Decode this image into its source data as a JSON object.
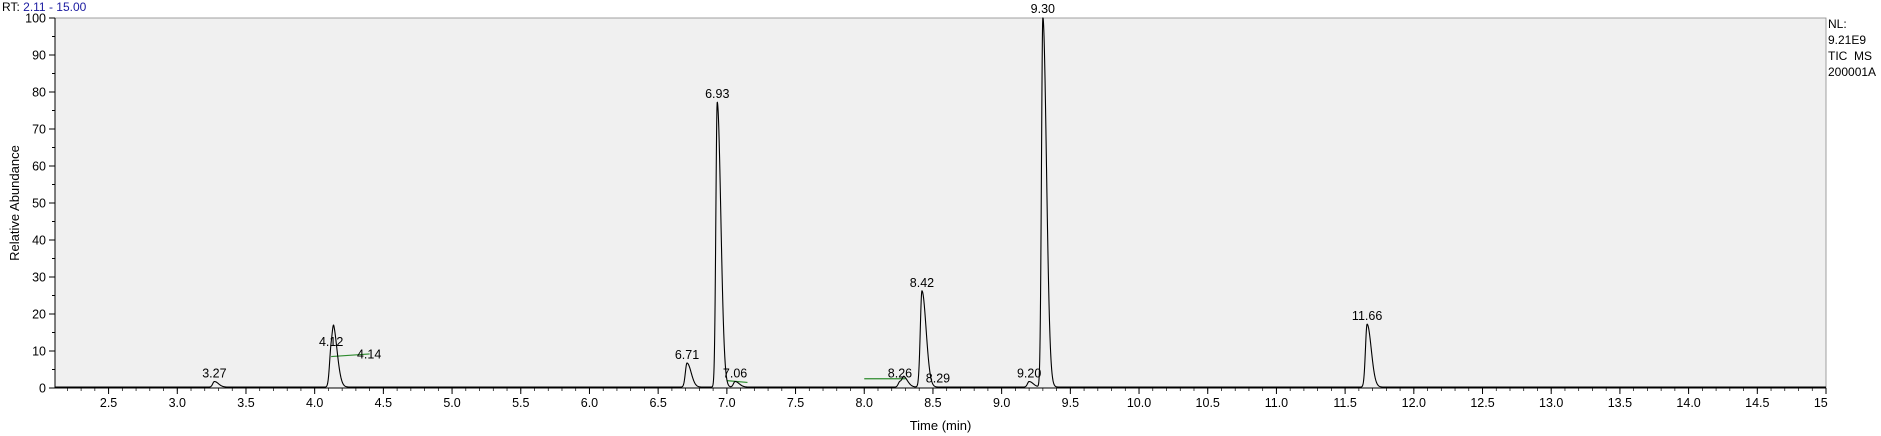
{
  "header": {
    "rt_prefix": "RT:",
    "rt_range": "2.11 - 15.00"
  },
  "info": {
    "nl_label": "NL:",
    "nl_value": "9.21E9",
    "trace": "TIC  MS",
    "file": "200001A"
  },
  "colors": {
    "plot_background": "#f0f0f0",
    "trace": "#000000",
    "baseline_marker": "#2e8b2e",
    "rt_range_text": "#1a1aa0"
  },
  "chart_data": {
    "type": "line",
    "title": "",
    "xlabel": "Time (min)",
    "ylabel": "Relative Abundance",
    "xlim": [
      2.11,
      15.0
    ],
    "ylim": [
      0,
      100
    ],
    "x_ticks": [
      2.5,
      3.0,
      3.5,
      4.0,
      4.5,
      5.0,
      5.5,
      6.0,
      6.5,
      7.0,
      7.5,
      8.0,
      8.5,
      9.0,
      9.5,
      10.0,
      10.5,
      11.0,
      11.5,
      12.0,
      12.5,
      13.0,
      13.5,
      14.0,
      14.5,
      15.0
    ],
    "x_tick_labels": [
      "2.5",
      "3.0",
      "3.5",
      "4.0",
      "4.5",
      "5.0",
      "5.5",
      "6.0",
      "6.5",
      "7.0",
      "7.5",
      "8.0",
      "8.5",
      "9.0",
      "9.5",
      "10.0",
      "10.5",
      "11.0",
      "11.5",
      "12.0",
      "12.5",
      "13.0",
      "13.5",
      "14.0",
      "14.5",
      "15.0"
    ],
    "y_ticks": [
      0,
      10,
      20,
      30,
      40,
      50,
      60,
      70,
      80,
      90,
      100
    ],
    "y_tick_labels": [
      "0",
      "10",
      "20",
      "30",
      "40",
      "50",
      "60",
      "70",
      "80",
      "90",
      "100"
    ],
    "peaks": [
      {
        "rt": 3.27,
        "label": "3.27",
        "height": 1.5
      },
      {
        "rt": 4.12,
        "label": "4.12",
        "height": 10
      },
      {
        "rt": 4.14,
        "label": "4.14",
        "height": 8.5
      },
      {
        "rt": 6.71,
        "label": "6.71",
        "height": 6.5
      },
      {
        "rt": 6.93,
        "label": "6.93",
        "height": 77
      },
      {
        "rt": 7.06,
        "label": "7.06",
        "height": 1.5
      },
      {
        "rt": 8.26,
        "label": "8.26",
        "height": 1.5
      },
      {
        "rt": 8.29,
        "label": "8.29",
        "height": 2
      },
      {
        "rt": 8.42,
        "label": "8.42",
        "height": 26
      },
      {
        "rt": 9.2,
        "label": "9.20",
        "height": 1.5
      },
      {
        "rt": 9.3,
        "label": "9.30",
        "height": 100
      },
      {
        "rt": 11.66,
        "label": "11.66",
        "height": 17
      }
    ],
    "baseline_markers": [
      {
        "from_rt": 4.12,
        "to_rt": 4.4,
        "from_level": 8.5,
        "to_level": 9.2
      },
      {
        "from_rt": 7.0,
        "to_rt": 7.15,
        "from_level": 2.0,
        "to_level": 1.5
      },
      {
        "from_rt": 8.0,
        "to_rt": 8.3,
        "from_level": 2.5,
        "to_level": 2.5
      }
    ]
  }
}
